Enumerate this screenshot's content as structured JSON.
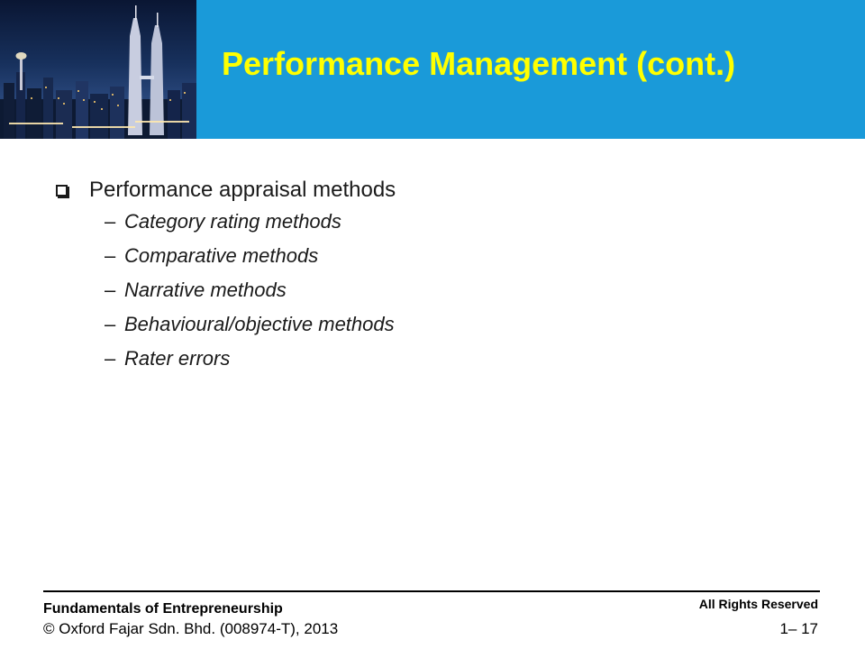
{
  "slide": {
    "title": "Performance Management (cont.)",
    "header_image": "night-city-skyline",
    "colors": {
      "header_band": "#1a9ad9",
      "title": "#ffff00"
    }
  },
  "content": {
    "main_bullet": "Performance appraisal methods",
    "sub_dash": "–",
    "sub_bullets": [
      "Category rating methods",
      "Comparative methods",
      "Narrative methods",
      "Behavioural/objective methods",
      "Rater errors"
    ]
  },
  "footer": {
    "book_title": "Fundamentals of Entrepreneurship",
    "copyright": "© Oxford Fajar Sdn. Bhd. (008974-T), 2013",
    "rights": "All Rights Reserved",
    "page_number": "1– 17"
  }
}
